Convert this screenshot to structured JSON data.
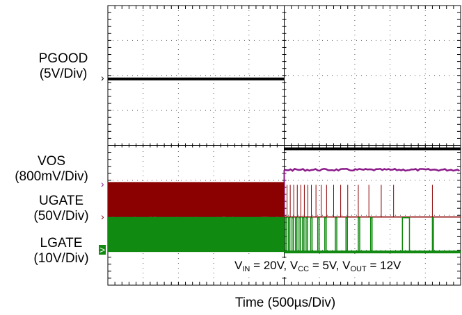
{
  "chart_data": {
    "type": "line",
    "title": "",
    "xlabel": "Time (500µs/Div)",
    "x_divisions": 10,
    "y_divisions": 8,
    "grid": true,
    "conditions_parts": [
      {
        "t": "V",
        "sub": "IN",
        "tail": " = 20V, "
      },
      {
        "t": "V",
        "sub": "CC",
        "tail": " = 5V, "
      },
      {
        "t": "V",
        "sub": "OUT",
        "tail": " = 12V"
      }
    ],
    "event_division": 5,
    "series": [
      {
        "name": "PGOOD",
        "scale": "(5V/Div)",
        "color": "#000000",
        "marker": "›",
        "before_div": 5.9,
        "after_div": 3.9,
        "ref_div": 4.9
      },
      {
        "name": "VOS",
        "scale": "(800mV/Div)",
        "color": "#8b1a89",
        "marker": "›",
        "before_div": 1.95,
        "after_div": 3.3,
        "ref_div": 1.95
      },
      {
        "name": "UGATE",
        "scale": "(50V/Div)",
        "color": "#8b0000",
        "marker": "›",
        "before_div_low": 1.95,
        "before_div_high": 2.95,
        "after_div": 1.95,
        "ref_div": 1.95
      },
      {
        "name": "LGATE",
        "scale": "(10V/Div)",
        "color": "#118a11",
        "marker": ">",
        "before_div_low": 0.95,
        "before_div_high": 1.95,
        "after_div": 0.95,
        "ref_div": 0.95
      }
    ]
  }
}
